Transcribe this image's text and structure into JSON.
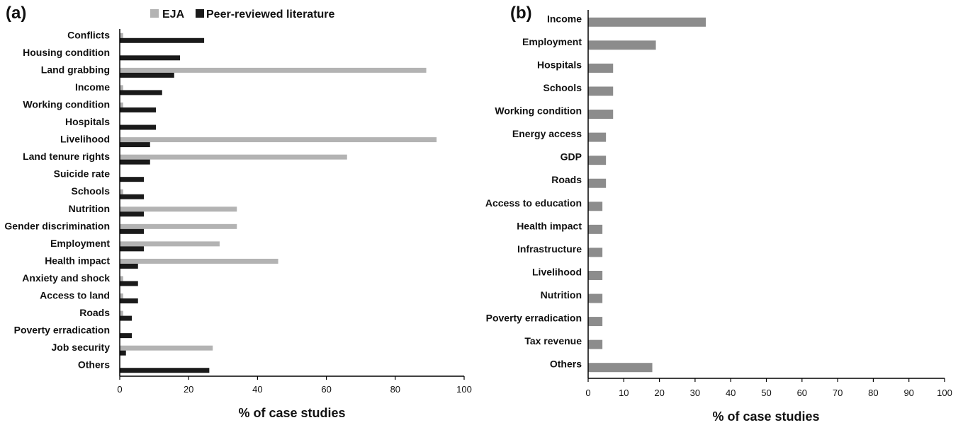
{
  "chart_data": [
    {
      "panel": "(a)",
      "type": "bar",
      "orientation": "horizontal",
      "categories": [
        "Conflicts",
        "Housing condition",
        "Land grabbing",
        "Income",
        "Working condition",
        "Hospitals",
        "Livelihood",
        "Land tenure rights",
        "Suicide rate",
        "Schools",
        "Nutrition",
        "Gender discrimination",
        "Employment",
        "Health impact",
        "Anxiety and shock",
        "Access to land",
        "Roads",
        "Poverty erradication",
        "Job security",
        "Others"
      ],
      "series": [
        {
          "name": "EJA",
          "color": "#b3b3b3",
          "values": [
            1,
            0,
            89,
            1,
            1,
            0,
            92,
            66,
            0,
            1,
            34,
            34,
            29,
            46,
            1,
            1,
            1,
            0,
            27,
            0
          ]
        },
        {
          "name": "Peer-reviewed literature",
          "color": "#1a1a1a",
          "values": [
            24.5,
            17.5,
            15.8,
            12.3,
            10.5,
            10.5,
            8.8,
            8.8,
            7,
            7,
            7,
            7,
            7,
            5.3,
            5.3,
            5.3,
            3.5,
            3.5,
            1.8,
            26
          ]
        }
      ],
      "xlabel": "% of case studies",
      "xlim": [
        0,
        100
      ],
      "xticks": [
        0,
        20,
        40,
        60,
        80,
        100
      ],
      "legend": "top"
    },
    {
      "panel": "(b)",
      "type": "bar",
      "orientation": "horizontal",
      "categories": [
        "Income",
        "Employment",
        "Hospitals",
        "Schools",
        "Working condition",
        "Energy access",
        "GDP",
        "Roads",
        "Access to education",
        "Health impact",
        "Infrastructure",
        "Livelihood",
        "Nutrition",
        "Poverty erradication",
        "Tax revenue",
        "Others"
      ],
      "series": [
        {
          "color": "#8c8c8c",
          "values": [
            33,
            19,
            7,
            7,
            7,
            5,
            5,
            5,
            4,
            4,
            4,
            4,
            4,
            4,
            4,
            18
          ]
        }
      ],
      "xlabel": "% of case studies",
      "xlim": [
        0,
        100
      ],
      "xticks": [
        0,
        10,
        20,
        30,
        40,
        50,
        60,
        70,
        80,
        90,
        100
      ]
    }
  ]
}
